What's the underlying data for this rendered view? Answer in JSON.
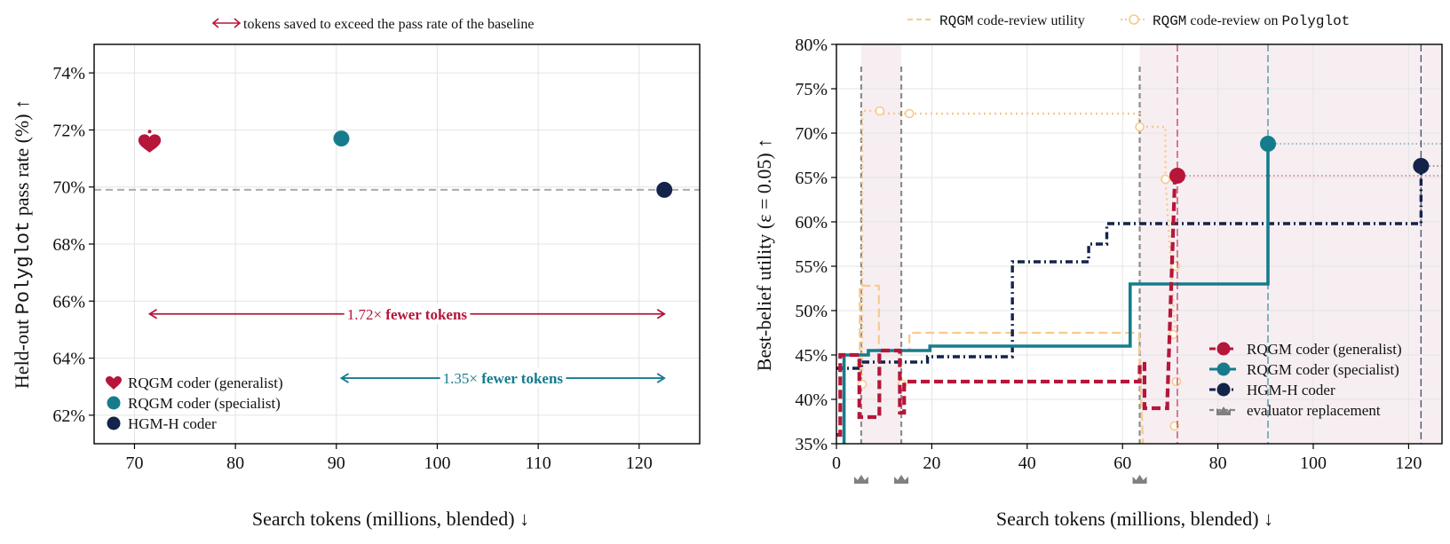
{
  "chart_data": [
    {
      "type": "scatter",
      "top_legend": "tokens saved to exceed the pass rate of the baseline",
      "ylabel": {
        "prefix": "Held-out ",
        "mono": "Polyglot",
        "suffix": " pass rate (%) ↑"
      },
      "xlabel": "Search tokens (millions, blended) ↓",
      "xlim": [
        66,
        126
      ],
      "ylim": [
        61,
        75
      ],
      "xticks": [
        70,
        80,
        90,
        100,
        110,
        120
      ],
      "yticks": [
        62,
        64,
        66,
        68,
        70,
        72,
        74
      ],
      "ytick_suffix": "%",
      "grid": true,
      "baseline_y": 69.9,
      "points": [
        {
          "name": "RQGM coder (generalist)",
          "x": 71.5,
          "y": 71.6,
          "color": "#b5163a",
          "marker": "heart"
        },
        {
          "name": "RQGM coder (specialist)",
          "x": 90.5,
          "y": 71.7,
          "color": "#167c8c",
          "marker": "circle"
        },
        {
          "name": "HGM-H coder",
          "x": 122.5,
          "y": 69.9,
          "color": "#14234a",
          "marker": "circle"
        }
      ],
      "arrows": [
        {
          "x1": 71.5,
          "x2": 122.5,
          "y": 65.55,
          "label_num": "1.72×",
          "label_bold": "fewer tokens",
          "color": "#b5163a"
        },
        {
          "x1": 90.5,
          "x2": 122.5,
          "y": 63.3,
          "label_num": "1.35×",
          "label_bold": "fewer tokens",
          "color": "#167c8c"
        }
      ],
      "legend_position": "lower-left",
      "legend": [
        "RQGM coder (generalist)",
        "RQGM coder (specialist)",
        "HGM-H coder"
      ]
    },
    {
      "type": "line",
      "top_legend": [
        {
          "parts": [
            {
              "t": "RQGM",
              "mono": true
            },
            {
              "t": " code-review utility",
              "mono": false
            }
          ]
        },
        {
          "parts": [
            {
              "t": "RQGM",
              "mono": true
            },
            {
              "t": " code-review on ",
              "mono": false
            },
            {
              "t": "Polyglot",
              "mono": true
            }
          ]
        }
      ],
      "ylabel": "Best-belief utility (ε = 0.05) ↑",
      "xlabel": "Search tokens (millions, blended) ↓",
      "xlim": [
        0,
        127
      ],
      "ylim": [
        35,
        80
      ],
      "xticks": [
        0,
        20,
        40,
        60,
        80,
        100,
        120
      ],
      "yticks": [
        35,
        40,
        45,
        50,
        55,
        60,
        65,
        70,
        75,
        80
      ],
      "ytick_suffix": "%",
      "grid": true,
      "shaded_regions": [
        [
          5.2,
          13.6
        ],
        [
          63.6,
          127
        ]
      ],
      "evaluator_replacements": [
        5.2,
        13.6,
        63.6
      ],
      "series": [
        {
          "name": "RQGM coder (generalist)",
          "color": "#b5163a",
          "style": "dashed",
          "x": [
            0,
            0.8,
            0.8,
            4.8,
            4.8,
            9,
            9,
            13.3,
            13.3,
            14.2,
            14.2,
            63.6,
            63.6,
            64.6,
            64.6,
            69.4,
            69.4,
            71
          ],
          "y": [
            36,
            36,
            45,
            45,
            38,
            38,
            45.5,
            45.5,
            38.5,
            38.5,
            42,
            42,
            44,
            44,
            39,
            39,
            40,
            65.2
          ],
          "end": {
            "x": 71.5,
            "y": 65.2
          }
        },
        {
          "name": "RQGM coder (specialist)",
          "color": "#167c8c",
          "style": "solid",
          "x": [
            1.6,
            1.6,
            6.7,
            6.7,
            19.6,
            19.6,
            61.6,
            61.6,
            90.5,
            90.5
          ],
          "y": [
            35,
            45,
            45,
            45.5,
            45.5,
            46,
            46,
            53,
            53,
            68.8
          ],
          "end": {
            "x": 90.5,
            "y": 68.8
          }
        },
        {
          "name": "HGM-H coder",
          "color": "#14234a",
          "style": "dashdot",
          "x": [
            0,
            5.3,
            5.3,
            19.1,
            19.1,
            36.9,
            36.9,
            52.9,
            52.9,
            56.7,
            56.7,
            122.6,
            122.6
          ],
          "y": [
            43.5,
            43.5,
            44.2,
            44.2,
            44.8,
            44.8,
            55.5,
            55.5,
            57.5,
            57.5,
            59.8,
            59.8,
            66.3
          ],
          "end": {
            "x": 122.6,
            "y": 66.3
          }
        },
        {
          "name": "RQGM code-review utility",
          "color": "#f9c98a",
          "style": "dashed",
          "x": [
            4.9,
            4.9,
            8.9,
            8.9,
            15.3,
            15.3,
            63.5,
            63.5,
            64.3
          ],
          "y": [
            41,
            52.8,
            52.8,
            45.5,
            45.5,
            47.5,
            47.5,
            45,
            35
          ]
        },
        {
          "name": "RQGM code-review on Polyglot",
          "color": "#f9c98a",
          "style": "dotted",
          "x": [
            5.4,
            5.4,
            9.1,
            9.1,
            15.3,
            15.3,
            63.5,
            63.5,
            69,
            69,
            71
          ],
          "y": [
            41.5,
            72.5,
            72.5,
            72.2,
            72.2,
            72.2,
            72.2,
            70.7,
            70.7,
            64.8,
            48
          ],
          "markers_x": [
            5.4,
            9.1,
            13.8,
            15.3,
            63.6,
            69,
            70.6,
            71.1,
            71.3,
            70.9
          ],
          "markers_y": [
            41.7,
            72.5,
            41.7,
            72.2,
            70.7,
            64.8,
            47.3,
            55,
            42,
            37
          ]
        }
      ],
      "legend_position": "lower-right",
      "legend": [
        "RQGM coder (generalist)",
        "RQGM coder (specialist)",
        "HGM-H coder",
        "evaluator replacement"
      ]
    }
  ]
}
